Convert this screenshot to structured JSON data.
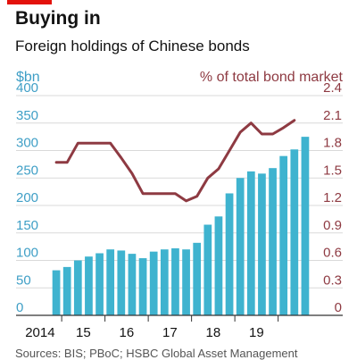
{
  "header": {
    "title": "Buying in",
    "subtitle": "Foreign holdings of Chinese bonds",
    "left_unit": "$bn",
    "right_unit": "% of total bond market",
    "source": "Sources: BIS; PBoC; HSBC Global Asset Management"
  },
  "colors": {
    "accent": "#e3120b",
    "bars": "#3fb3cf",
    "line": "#8e3a42",
    "left_axis_text": "#3f9fc6",
    "right_axis_text": "#8e3a42",
    "grid": "#d9d9d9"
  },
  "chart_data": {
    "type": "bar",
    "title": "Buying in",
    "subtitle": "Foreign holdings of Chinese bonds",
    "x_tick_labels": [
      "2014",
      "15",
      "16",
      "17",
      "18",
      "19"
    ],
    "x_start": 2013.75,
    "x_end": 2019.75,
    "left_axis": {
      "label": "$bn",
      "ylim": [
        0,
        400
      ],
      "ticks": [
        0,
        50,
        100,
        150,
        200,
        250,
        300,
        350,
        400
      ]
    },
    "right_axis": {
      "label": "% of total bond market",
      "ylim": [
        0,
        2.4
      ],
      "ticks": [
        "0",
        "0.3",
        "0.6",
        "0.9",
        "1.2",
        "1.5",
        "1.8",
        "2.1",
        "2.4"
      ]
    },
    "grid": true,
    "series": [
      {
        "name": "$bn",
        "type": "bar",
        "axis": "left",
        "x": [
          2013.875,
          2014.125,
          2014.375,
          2014.625,
          2014.875,
          2015.125,
          2015.375,
          2015.625,
          2015.875,
          2016.125,
          2016.375,
          2016.625,
          2016.875,
          2017.125,
          2017.375,
          2017.625,
          2017.875,
          2018.125,
          2018.375,
          2018.625,
          2018.875,
          2019.125,
          2019.375,
          2019.625
        ],
        "values": [
          82,
          88,
          100,
          107,
          113,
          120,
          118,
          112,
          104,
          116,
          120,
          122,
          120,
          132,
          165,
          180,
          222,
          250,
          262,
          258,
          268,
          290,
          302,
          325
        ]
      },
      {
        "name": "% of total bond market",
        "type": "line",
        "axis": "right",
        "x": [
          2013.875,
          2014.125,
          2014.375,
          2014.625,
          2014.875,
          2015.125,
          2015.375,
          2015.625,
          2015.875,
          2016.125,
          2016.375,
          2016.625,
          2016.875,
          2017.125,
          2017.375,
          2017.625,
          2017.875,
          2018.125,
          2018.375,
          2018.625,
          2018.875,
          2019.125,
          2019.375
        ],
        "values": [
          1.67,
          1.67,
          1.88,
          1.88,
          1.88,
          1.88,
          1.72,
          1.55,
          1.33,
          1.33,
          1.33,
          1.33,
          1.25,
          1.3,
          1.5,
          1.6,
          1.8,
          2.0,
          2.1,
          1.98,
          1.98,
          2.05,
          2.13
        ]
      }
    ],
    "source": "Sources: BIS; PBoC; HSBC Global Asset Management"
  }
}
